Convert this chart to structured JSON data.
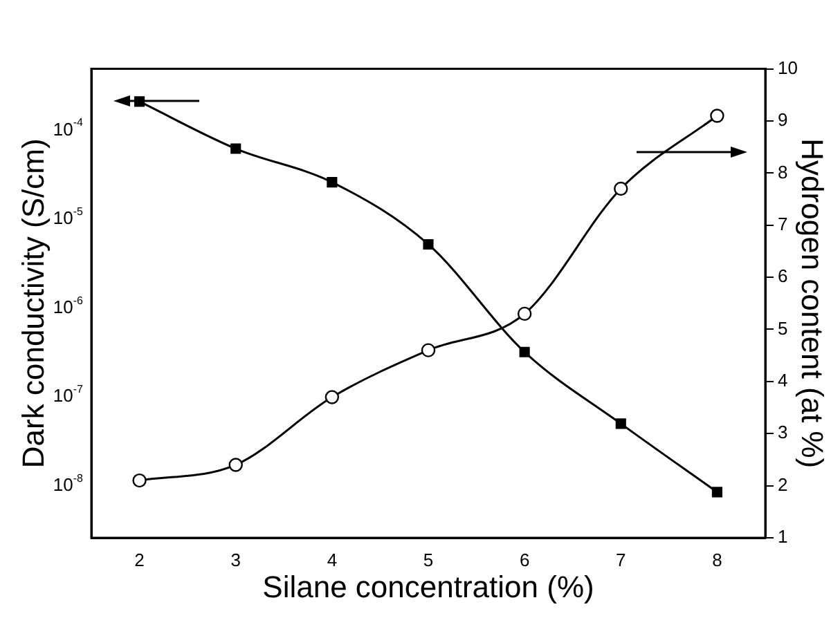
{
  "chart_data": {
    "type": "line",
    "xlabel": "Silane concentration (%)",
    "ylabel": "Dark conductivity (S/cm)",
    "y2label": "Hydrogen content (at %)",
    "x": [
      2,
      3,
      4,
      5,
      6,
      7,
      8
    ],
    "series": [
      {
        "color": "#000000",
        "marker": "square",
        "values": [
          0.00021,
          6.2e-05,
          2.6e-05,
          5.2e-06,
          3.2e-07,
          5e-08,
          8.5e-09
        ]
      },
      {
        "color": "#000000",
        "marker": "circle",
        "axis": "y2",
        "values": [
          2.1,
          2.4,
          3.7,
          4.6,
          5.3,
          7.7,
          9.1
        ]
      }
    ],
    "log": "y",
    "xlim": [
      1.5,
      8.5
    ],
    "xticks": [
      2,
      3,
      4,
      5,
      6,
      7,
      8
    ],
    "ylim": [
      2.6e-09,
      0.00049
    ],
    "yticks": [
      {
        "value": 1e-08,
        "label": "10$^{-8}$"
      },
      {
        "value": 1e-07,
        "label": "10$^{-7}$"
      },
      {
        "value": 1e-06,
        "label": "10$^{-6}$"
      },
      {
        "value": 1e-05,
        "label": "10$^{-5}$"
      },
      {
        "value": 0.0001,
        "label": "10$^{-4}$"
      }
    ],
    "y2lim": [
      1,
      10
    ],
    "y2ticks": [
      1,
      2,
      3,
      4,
      5,
      6,
      7,
      8,
      9,
      10
    ],
    "grid": false,
    "legend": false,
    "line_style": "solid"
  }
}
